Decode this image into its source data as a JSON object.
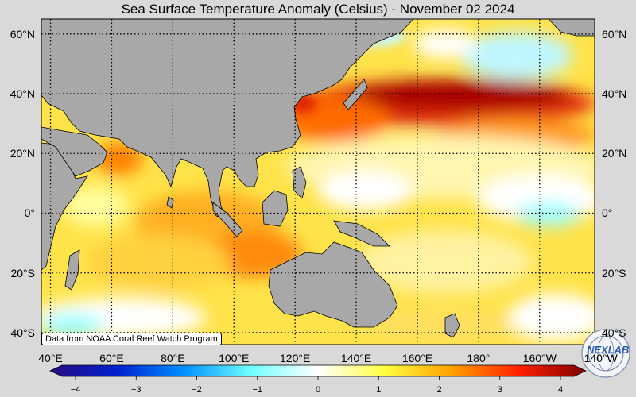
{
  "title": "Sea Surface Temperature Anomaly (Celsius) - November 02 2024",
  "credit": "Data from NOAA Coral Reef Watch Program",
  "logo": {
    "text": "NEXLAB",
    "icon": "nexlab-globe-logo"
  },
  "map": {
    "lat_labels": [
      "60°N",
      "40°N",
      "20°N",
      "0°",
      "20°S",
      "40°S"
    ],
    "lat_values": [
      60,
      40,
      20,
      0,
      -20,
      -40
    ],
    "lon_labels": [
      "40°E",
      "60°E",
      "80°E",
      "100°E",
      "120°E",
      "140°E",
      "160°E",
      "180°",
      "160°W",
      "140°W"
    ],
    "lon_values": [
      40,
      60,
      80,
      100,
      120,
      140,
      160,
      180,
      200,
      220
    ],
    "lon_range": [
      37,
      218
    ],
    "lat_range": [
      -44,
      65
    ]
  },
  "colorbar": {
    "ticks": [
      "−4",
      "−3",
      "−2",
      "−1",
      "0",
      "1",
      "2",
      "3",
      "4"
    ],
    "tick_values": [
      -4,
      -3,
      -2,
      -1,
      0,
      1,
      2,
      3,
      4
    ],
    "range": [
      -4,
      4
    ],
    "colors": [
      "#2a0a80",
      "#0020d0",
      "#0090ff",
      "#70ffff",
      "#ffffff",
      "#ffff40",
      "#ffa000",
      "#ff2000",
      "#800000"
    ]
  }
}
